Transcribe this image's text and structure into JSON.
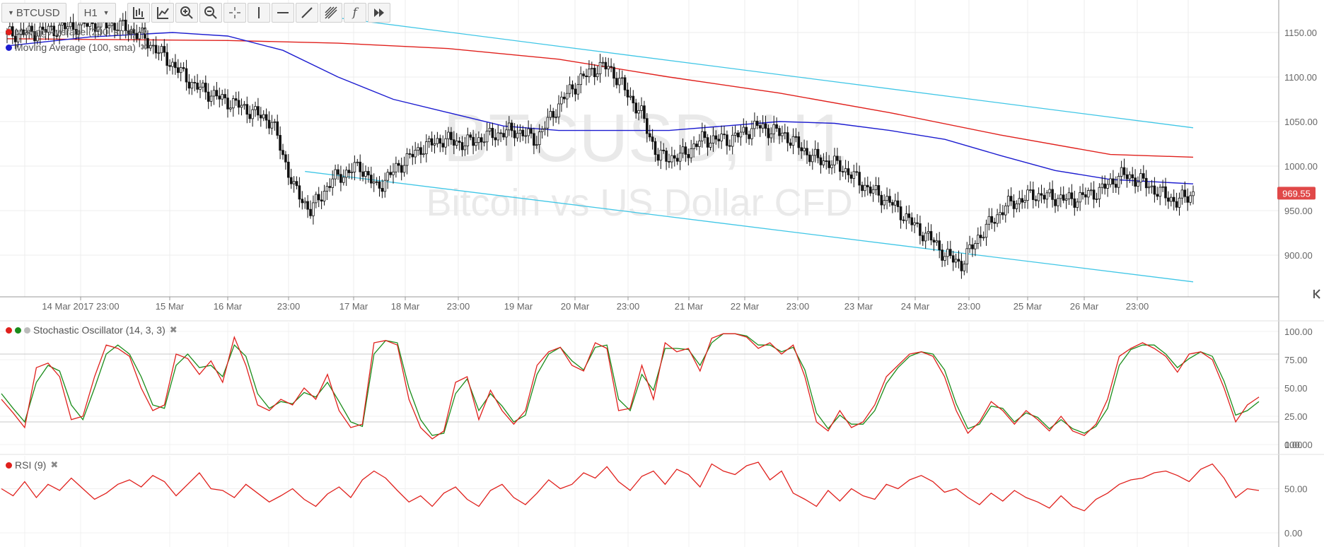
{
  "toolbar": {
    "symbol": "BTCUSD",
    "interval": "H1",
    "tools": [
      "bar-type-icon",
      "indicator-icon",
      "zoom-in-icon",
      "zoom-out-icon",
      "crosshair-icon",
      "vertical-line-icon",
      "horizontal-line-icon",
      "trend-line-icon",
      "fibonacci-icon",
      "function-icon",
      "fast-forward-icon"
    ]
  },
  "watermark": {
    "symbol": "BTCUSD, H1",
    "name": "Bitcoin vs US Dollar CFD"
  },
  "legend": {
    "ma200": {
      "label": "Moving Average (200, sma)",
      "color": "#e0201c"
    },
    "ma100": {
      "label": "Moving Average (100, sma)",
      "color": "#1c1cd0"
    },
    "stoch": {
      "label": "Stochastic Oscillator (14, 3, 3)"
    },
    "rsi": {
      "label": "RSI (9)"
    }
  },
  "price_badge": {
    "value": "969.55",
    "color": "#e04848"
  },
  "chart_data": [
    {
      "type": "candlestick",
      "title": "BTCUSD, H1",
      "x_ticks": [
        "14 Mar 2017 23:00",
        "15 Mar",
        "16 Mar",
        "23:00",
        "17 Mar",
        "18 Mar",
        "23:00",
        "19 Mar",
        "20 Mar",
        "23:00",
        "21 Mar",
        "22 Mar",
        "23:00",
        "23 Mar",
        "24 Mar",
        "23:00",
        "25 Mar",
        "26 Mar",
        "23:00"
      ],
      "y_ticks": [
        "1150.00",
        "1100.00",
        "1050.00",
        "1000.00",
        "950.00",
        "900.00"
      ],
      "ylim": [
        860,
        1190
      ],
      "last_price": 969.55,
      "close_path": [
        [
          0,
          1148
        ],
        [
          10,
          1150
        ],
        [
          20,
          1155
        ],
        [
          30,
          1160
        ],
        [
          40,
          1158
        ],
        [
          48,
          1148
        ],
        [
          58,
          1120
        ],
        [
          68,
          1090
        ],
        [
          78,
          1075
        ],
        [
          84,
          1068
        ],
        [
          96,
          1050
        ],
        [
          104,
          975
        ],
        [
          110,
          950
        ],
        [
          118,
          985
        ],
        [
          128,
          1000
        ],
        [
          134,
          975
        ],
        [
          142,
          1000
        ],
        [
          150,
          1020
        ],
        [
          158,
          1030
        ],
        [
          166,
          1025
        ],
        [
          176,
          1035
        ],
        [
          184,
          1040
        ],
        [
          192,
          1030
        ],
        [
          198,
          1060
        ],
        [
          204,
          1085
        ],
        [
          212,
          1108
        ],
        [
          218,
          1112
        ],
        [
          222,
          1095
        ],
        [
          230,
          1058
        ],
        [
          236,
          1010
        ],
        [
          244,
          1010
        ],
        [
          252,
          1030
        ],
        [
          262,
          1030
        ],
        [
          272,
          1045
        ],
        [
          282,
          1035
        ],
        [
          292,
          1010
        ],
        [
          302,
          1000
        ],
        [
          312,
          975
        ],
        [
          320,
          960
        ],
        [
          330,
          930
        ],
        [
          336,
          915
        ],
        [
          340,
          900
        ],
        [
          346,
          890
        ],
        [
          352,
          920
        ],
        [
          362,
          955
        ],
        [
          372,
          968
        ],
        [
          386,
          962
        ],
        [
          396,
          972
        ],
        [
          404,
          990
        ],
        [
          410,
          985
        ],
        [
          418,
          970
        ],
        [
          424,
          960
        ],
        [
          430,
          969.55
        ]
      ],
      "series": [
        {
          "name": "Moving Average (200, sma)",
          "color": "#e0201c",
          "points": [
            [
              0,
              1143
            ],
            [
              40,
              1142
            ],
            [
              80,
              1141
            ],
            [
              120,
              1138
            ],
            [
              160,
              1132
            ],
            [
              200,
              1120
            ],
            [
              240,
              1100
            ],
            [
              280,
              1082
            ],
            [
              320,
              1060
            ],
            [
              360,
              1035
            ],
            [
              400,
              1013
            ],
            [
              430,
              1010
            ]
          ]
        },
        {
          "name": "Moving Average (100, sma)",
          "color": "#1c1cd0",
          "points": [
            [
              0,
              1135
            ],
            [
              30,
              1145
            ],
            [
              60,
              1150
            ],
            [
              80,
              1146
            ],
            [
              100,
              1130
            ],
            [
              120,
              1100
            ],
            [
              140,
              1075
            ],
            [
              160,
              1060
            ],
            [
              180,
              1045
            ],
            [
              200,
              1040
            ],
            [
              220,
              1040
            ],
            [
              240,
              1040
            ],
            [
              260,
              1045
            ],
            [
              280,
              1050
            ],
            [
              300,
              1048
            ],
            [
              320,
              1040
            ],
            [
              340,
              1030
            ],
            [
              360,
              1012
            ],
            [
              380,
              995
            ],
            [
              400,
              985
            ],
            [
              430,
              980
            ]
          ]
        }
      ],
      "channel": {
        "color": "#3fc6e6",
        "upper": [
          [
            116,
            1168
          ],
          [
            430,
            1043
          ]
        ],
        "lower": [
          [
            108,
            994
          ],
          [
            430,
            870
          ]
        ]
      }
    },
    {
      "type": "line",
      "title": "Stochastic Oscillator (14, 3, 3)",
      "ylim": [
        0,
        100
      ],
      "y_ticks": [
        "100.00",
        "75.00",
        "50.00",
        "25.00",
        "0.00"
      ],
      "levels": [
        80,
        20
      ],
      "series": [
        {
          "name": "%K",
          "color": "#e0201c",
          "values": [
            40,
            28,
            15,
            68,
            72,
            60,
            22,
            25,
            60,
            88,
            85,
            78,
            50,
            30,
            35,
            80,
            76,
            62,
            74,
            55,
            95,
            70,
            35,
            30,
            40,
            35,
            50,
            40,
            62,
            30,
            15,
            18,
            90,
            92,
            88,
            40,
            15,
            5,
            12,
            55,
            60,
            22,
            48,
            30,
            18,
            30,
            70,
            82,
            86,
            70,
            65,
            90,
            85,
            30,
            32,
            70,
            40,
            90,
            82,
            85,
            65,
            94,
            98,
            98,
            95,
            85,
            90,
            80,
            88,
            60,
            20,
            12,
            30,
            15,
            20,
            35,
            60,
            70,
            80,
            82,
            78,
            60,
            30,
            10,
            20,
            38,
            30,
            18,
            30,
            22,
            12,
            25,
            12,
            8,
            18,
            40,
            78,
            85,
            90,
            85,
            78,
            64,
            80,
            82,
            75,
            50,
            20,
            35,
            42
          ]
        },
        {
          "name": "%D",
          "color": "#1a8c1a",
          "values": [
            45,
            32,
            20,
            55,
            70,
            65,
            35,
            22,
            50,
            80,
            88,
            80,
            60,
            35,
            32,
            70,
            80,
            68,
            70,
            60,
            88,
            78,
            45,
            32,
            38,
            36,
            46,
            42,
            55,
            38,
            20,
            16,
            80,
            92,
            90,
            50,
            22,
            8,
            10,
            45,
            58,
            30,
            45,
            34,
            20,
            26,
            62,
            80,
            86,
            74,
            66,
            86,
            88,
            40,
            30,
            62,
            48,
            85,
            85,
            84,
            70,
            90,
            98,
            98,
            96,
            88,
            88,
            82,
            86,
            66,
            28,
            14,
            26,
            18,
            18,
            30,
            54,
            68,
            78,
            82,
            80,
            66,
            36,
            14,
            18,
            34,
            32,
            20,
            28,
            24,
            14,
            22,
            14,
            10,
            16,
            32,
            70,
            84,
            88,
            88,
            80,
            68,
            76,
            82,
            78,
            56,
            26,
            30,
            38
          ]
        }
      ]
    },
    {
      "type": "line",
      "title": "RSI (9)",
      "ylim": [
        0,
        100
      ],
      "y_ticks": [
        "100.00",
        "50.00",
        "0.00"
      ],
      "series": [
        {
          "name": "RSI (9)",
          "color": "#e0201c",
          "values": [
            50,
            42,
            58,
            40,
            55,
            48,
            62,
            50,
            38,
            45,
            55,
            60,
            52,
            65,
            58,
            42,
            55,
            68,
            50,
            48,
            40,
            55,
            45,
            35,
            42,
            50,
            38,
            30,
            44,
            52,
            40,
            60,
            70,
            62,
            48,
            35,
            42,
            30,
            45,
            52,
            38,
            30,
            48,
            55,
            40,
            32,
            45,
            60,
            50,
            55,
            68,
            62,
            75,
            58,
            48,
            64,
            70,
            55,
            72,
            66,
            52,
            78,
            70,
            66,
            76,
            80,
            60,
            70,
            45,
            38,
            30,
            48,
            36,
            50,
            42,
            38,
            55,
            50,
            60,
            65,
            58,
            46,
            50,
            40,
            32,
            45,
            36,
            48,
            40,
            35,
            28,
            42,
            30,
            25,
            38,
            45,
            55,
            60,
            62,
            68,
            70,
            65,
            58,
            72,
            78,
            62,
            40,
            50,
            48
          ]
        }
      ]
    }
  ]
}
